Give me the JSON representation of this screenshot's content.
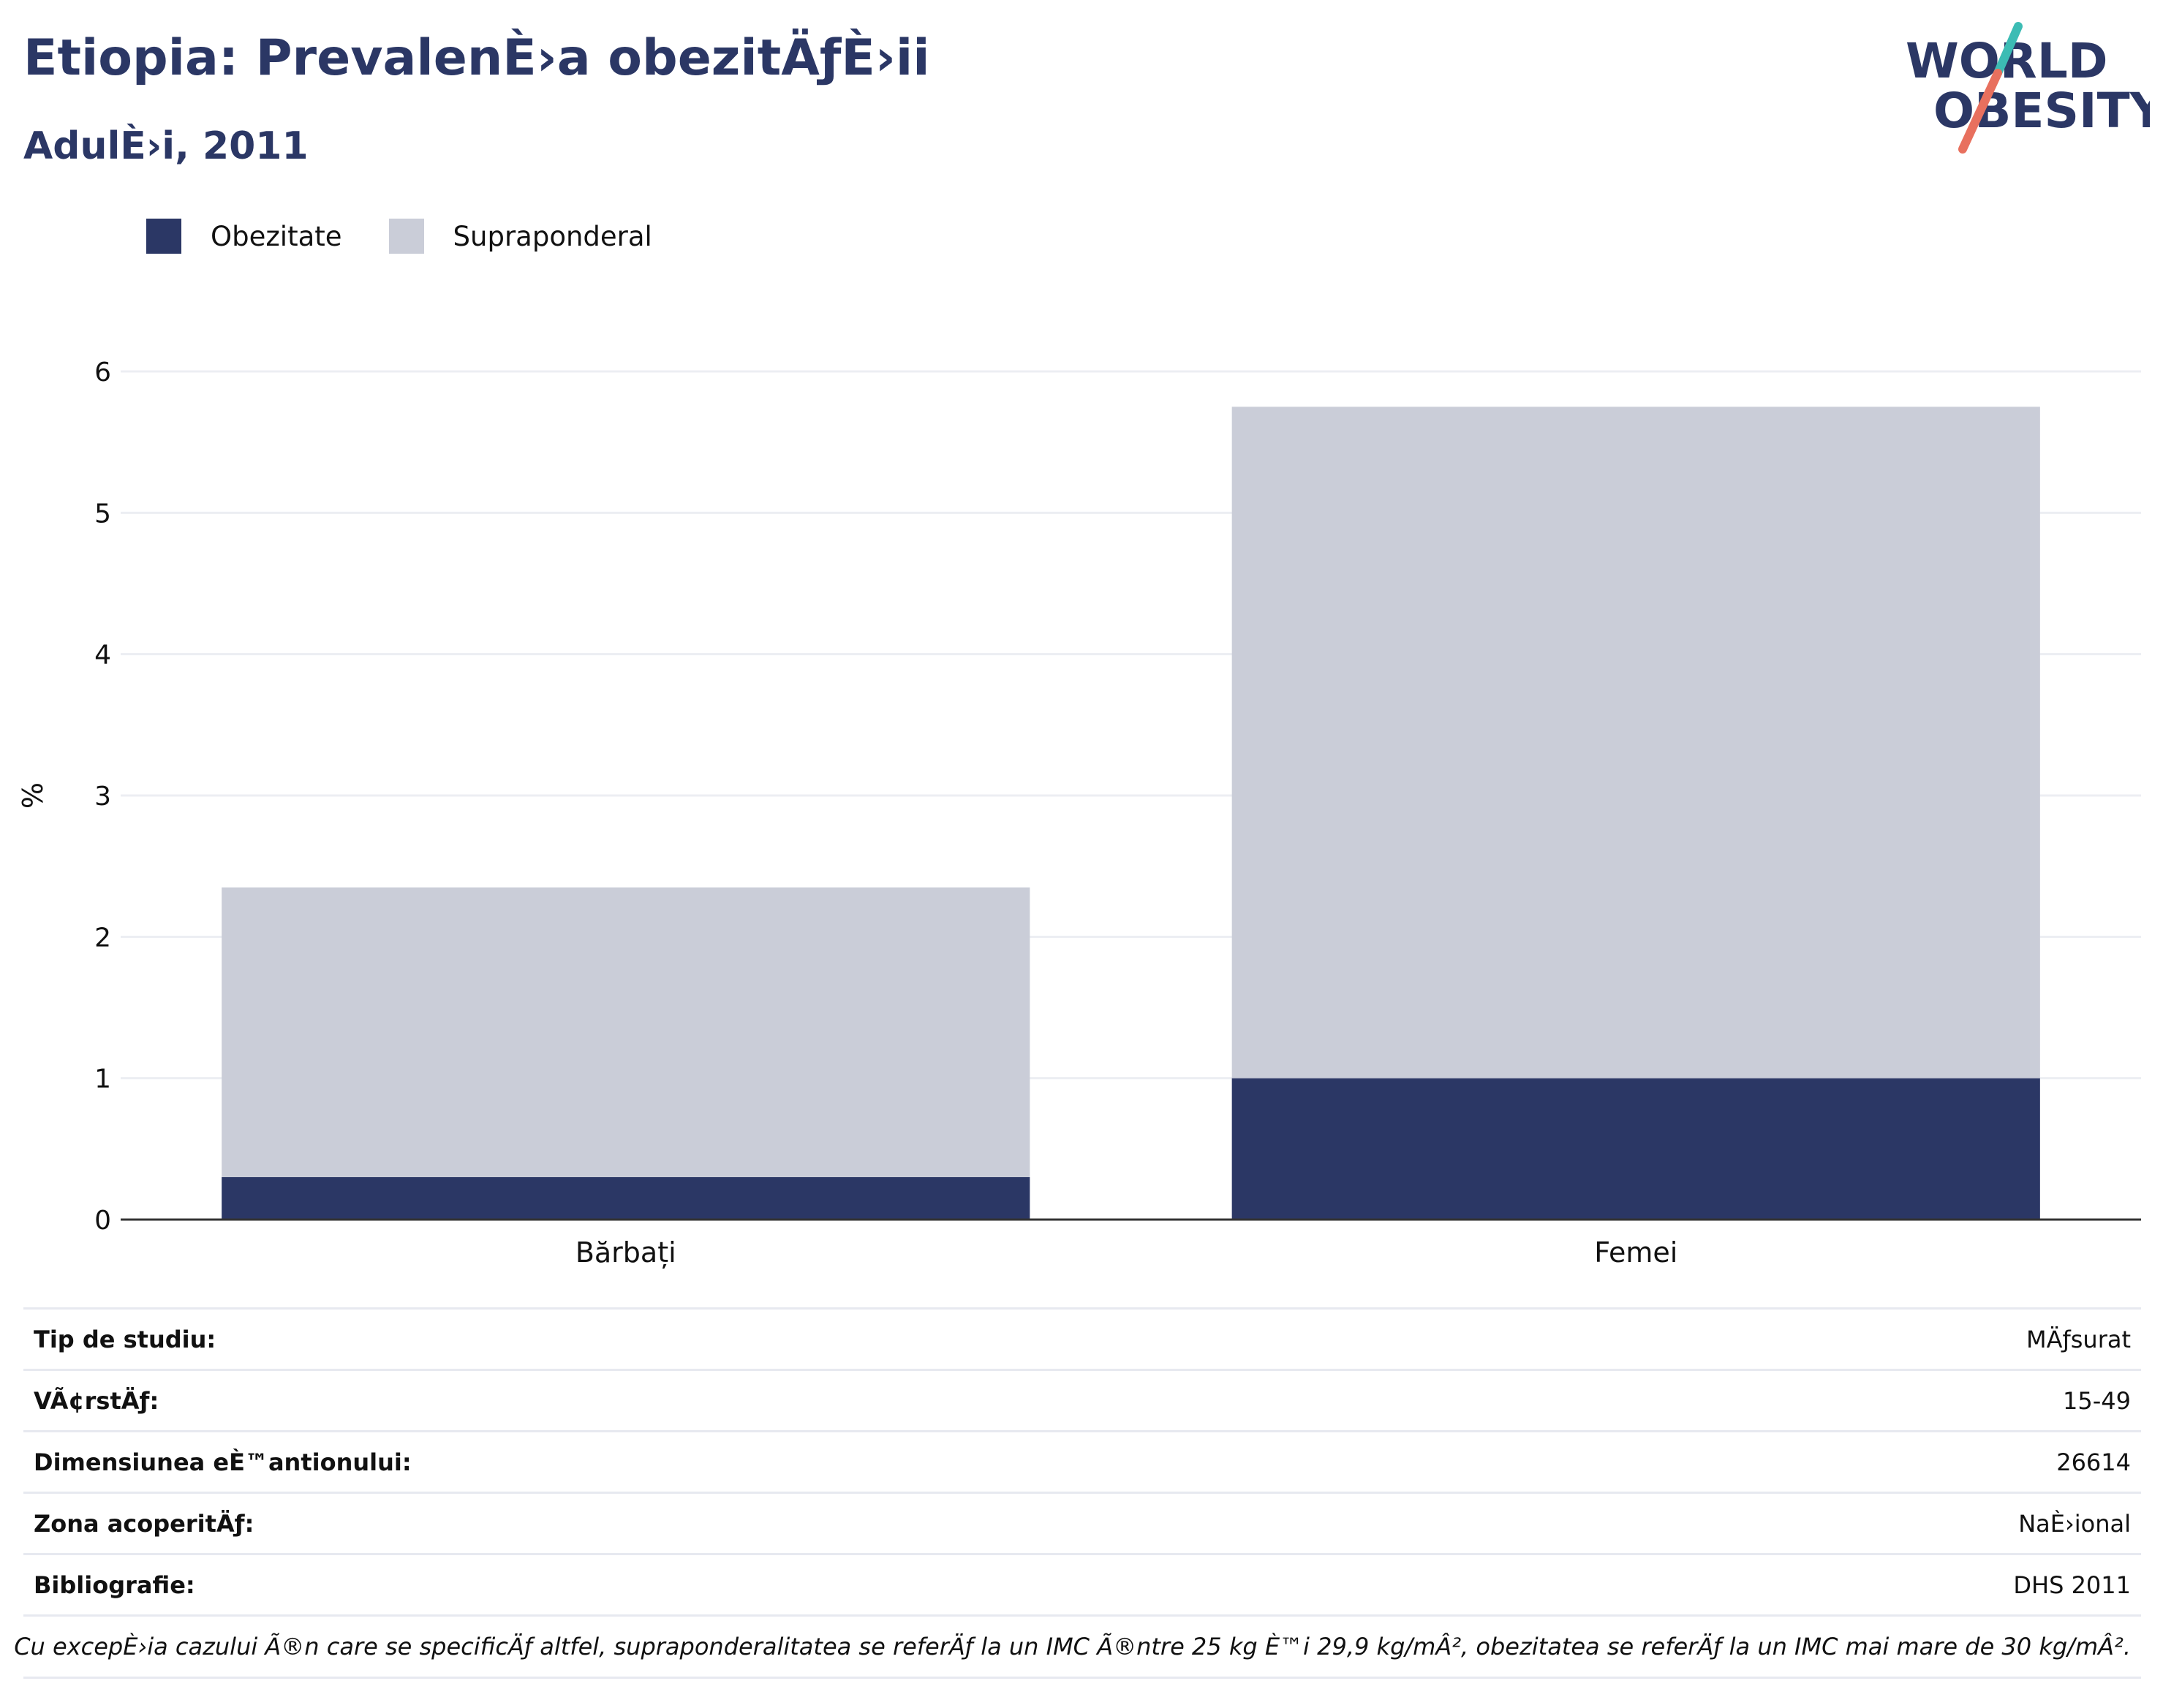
{
  "header": {
    "title": "Etiopia: PrevalenÈ›a obezitÄƒÈ›ii",
    "subtitle": "AdulÈ›i, 2011"
  },
  "logo": {
    "line1": "WORLD",
    "line2": "OBESITY"
  },
  "colors": {
    "obezitate": "#2b3765",
    "supraponderal": "#cacdd8",
    "brand_teal": "#3cbcb4",
    "brand_coral": "#e8705e"
  },
  "chart_data": {
    "type": "bar",
    "stacked": true,
    "categories": [
      "Bărbați",
      "Femei"
    ],
    "series": [
      {
        "name": "Obezitate",
        "values": [
          0.3,
          1.0
        ]
      },
      {
        "name": "Supraponderal",
        "values": [
          2.05,
          4.75
        ]
      }
    ],
    "ylabel": "%",
    "ylim": [
      0,
      6
    ],
    "yticks": [
      0,
      1,
      2,
      3,
      4,
      5,
      6
    ],
    "grid": true,
    "legend": "top-left"
  },
  "info": {
    "rows": [
      {
        "key": "Tip de studiu:",
        "value": "MÄƒsurat"
      },
      {
        "key": "VÃ¢rstÄƒ:",
        "value": "15-49"
      },
      {
        "key": "Dimensiunea eÈ™antionului:",
        "value": "26614"
      },
      {
        "key": "Zona acoperitÄƒ:",
        "value": "NaÈ›ional"
      },
      {
        "key": "Bibliografie:",
        "value": "DHS 2011"
      }
    ],
    "note": "Cu excepÈ›ia cazului Ã®n care se specificÄƒ altfel, supraponderalitatea se referÄƒ la un IMC Ã®ntre 25 kg È™i 29,9 kg/mÂ², obezitatea se referÄƒ la un IMC mai mare de 30 kg/mÂ²."
  }
}
